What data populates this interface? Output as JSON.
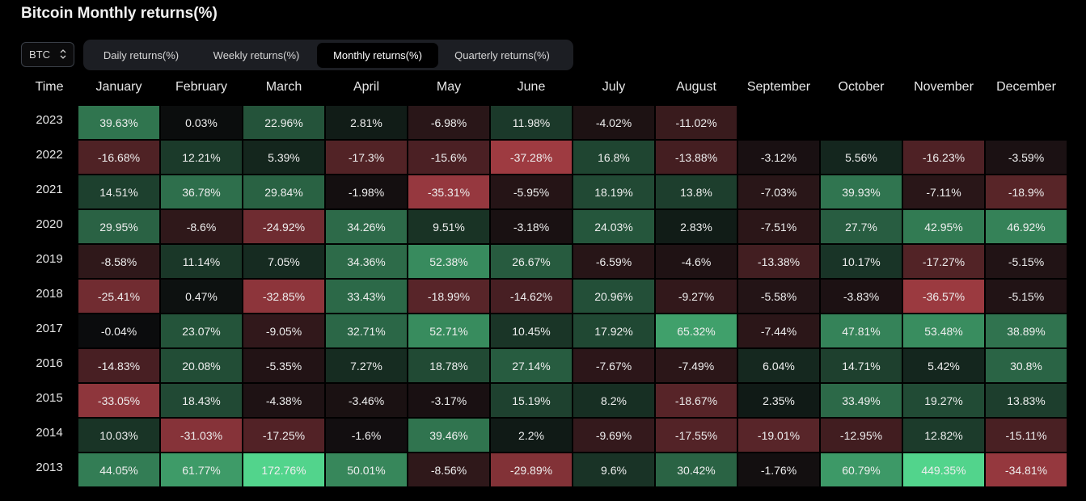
{
  "title": "Bitcoin Monthly returns(%)",
  "asset_selector": {
    "value": "BTC"
  },
  "tabs": [
    {
      "label": "Daily returns(%)",
      "active": false
    },
    {
      "label": "Weekly returns(%)",
      "active": false
    },
    {
      "label": "Monthly returns(%)",
      "active": true
    },
    {
      "label": "Quarterly returns(%)",
      "active": false
    }
  ],
  "colors": {
    "background": "#000000",
    "positive": "#52d48c",
    "negative": "#a83e45",
    "neutral": "#0b0c0d"
  },
  "chart_data": {
    "type": "heatmap",
    "title": "Bitcoin Monthly returns(%)",
    "row_header": "Time",
    "columns": [
      "January",
      "February",
      "March",
      "April",
      "May",
      "June",
      "July",
      "August",
      "September",
      "October",
      "November",
      "December"
    ],
    "rows": [
      {
        "year": "2023",
        "values": [
          39.63,
          0.03,
          22.96,
          2.81,
          -6.98,
          11.98,
          -4.02,
          -11.02,
          null,
          null,
          null,
          null
        ],
        "labels": [
          "39.63%",
          "0.03%",
          "22.96%",
          "2.81%",
          "-6.98%",
          "11.98%",
          "-4.02%",
          "-11.02%",
          null,
          null,
          null,
          null
        ]
      },
      {
        "year": "2022",
        "values": [
          -16.68,
          12.21,
          5.39,
          -17.3,
          -15.6,
          -37.28,
          16.8,
          -13.88,
          -3.12,
          5.56,
          -16.23,
          -3.59
        ],
        "labels": [
          "-16.68%",
          "12.21%",
          "5.39%",
          "-17.3%",
          "-15.6%",
          "-37.28%",
          "16.8%",
          "-13.88%",
          "-3.12%",
          "5.56%",
          "-16.23%",
          "-3.59%"
        ]
      },
      {
        "year": "2021",
        "values": [
          14.51,
          36.78,
          29.84,
          -1.98,
          -35.31,
          -5.95,
          18.19,
          13.8,
          -7.03,
          39.93,
          -7.11,
          -18.9
        ],
        "labels": [
          "14.51%",
          "36.78%",
          "29.84%",
          "-1.98%",
          "-35.31%",
          "-5.95%",
          "18.19%",
          "13.8%",
          "-7.03%",
          "39.93%",
          "-7.11%",
          "-18.9%"
        ]
      },
      {
        "year": "2020",
        "values": [
          29.95,
          -8.6,
          -24.92,
          34.26,
          9.51,
          -3.18,
          24.03,
          2.83,
          -7.51,
          27.7,
          42.95,
          46.92
        ],
        "labels": [
          "29.95%",
          "-8.6%",
          "-24.92%",
          "34.26%",
          "9.51%",
          "-3.18%",
          "24.03%",
          "2.83%",
          "-7.51%",
          "27.7%",
          "42.95%",
          "46.92%"
        ]
      },
      {
        "year": "2019",
        "values": [
          -8.58,
          11.14,
          7.05,
          34.36,
          52.38,
          26.67,
          -6.59,
          -4.6,
          -13.38,
          10.17,
          -17.27,
          -5.15
        ],
        "labels": [
          "-8.58%",
          "11.14%",
          "7.05%",
          "34.36%",
          "52.38%",
          "26.67%",
          "-6.59%",
          "-4.6%",
          "-13.38%",
          "10.17%",
          "-17.27%",
          "-5.15%"
        ]
      },
      {
        "year": "2018",
        "values": [
          -25.41,
          0.47,
          -32.85,
          33.43,
          -18.99,
          -14.62,
          20.96,
          -9.27,
          -5.58,
          -3.83,
          -36.57,
          -5.15
        ],
        "labels": [
          "-25.41%",
          "0.47%",
          "-32.85%",
          "33.43%",
          "-18.99%",
          "-14.62%",
          "20.96%",
          "-9.27%",
          "-5.58%",
          "-3.83%",
          "-36.57%",
          "-5.15%"
        ]
      },
      {
        "year": "2017",
        "values": [
          -0.04,
          23.07,
          -9.05,
          32.71,
          52.71,
          10.45,
          17.92,
          65.32,
          -7.44,
          47.81,
          53.48,
          38.89
        ],
        "labels": [
          "-0.04%",
          "23.07%",
          "-9.05%",
          "32.71%",
          "52.71%",
          "10.45%",
          "17.92%",
          "65.32%",
          "-7.44%",
          "47.81%",
          "53.48%",
          "38.89%"
        ]
      },
      {
        "year": "2016",
        "values": [
          -14.83,
          20.08,
          -5.35,
          7.27,
          18.78,
          27.14,
          -7.67,
          -7.49,
          6.04,
          14.71,
          5.42,
          30.8
        ],
        "labels": [
          "-14.83%",
          "20.08%",
          "-5.35%",
          "7.27%",
          "18.78%",
          "27.14%",
          "-7.67%",
          "-7.49%",
          "6.04%",
          "14.71%",
          "5.42%",
          "30.8%"
        ]
      },
      {
        "year": "2015",
        "values": [
          -33.05,
          18.43,
          -4.38,
          -3.46,
          -3.17,
          15.19,
          8.2,
          -18.67,
          2.35,
          33.49,
          19.27,
          13.83
        ],
        "labels": [
          "-33.05%",
          "18.43%",
          "-4.38%",
          "-3.46%",
          "-3.17%",
          "15.19%",
          "8.2%",
          "-18.67%",
          "2.35%",
          "33.49%",
          "19.27%",
          "13.83%"
        ]
      },
      {
        "year": "2014",
        "values": [
          10.03,
          -31.03,
          -17.25,
          -1.6,
          39.46,
          2.2,
          -9.69,
          -17.55,
          -19.01,
          -12.95,
          12.82,
          -15.11
        ],
        "labels": [
          "10.03%",
          "-31.03%",
          "-17.25%",
          "-1.6%",
          "39.46%",
          "2.2%",
          "-9.69%",
          "-17.55%",
          "-19.01%",
          "-12.95%",
          "12.82%",
          "-15.11%"
        ]
      },
      {
        "year": "2013",
        "values": [
          44.05,
          61.77,
          172.76,
          50.01,
          -8.56,
          -29.89,
          9.6,
          30.42,
          -1.76,
          60.79,
          449.35,
          -34.81
        ],
        "labels": [
          "44.05%",
          "61.77%",
          "172.76%",
          "50.01%",
          "-8.56%",
          "-29.89%",
          "9.6%",
          "30.42%",
          "-1.76%",
          "60.79%",
          "449.35%",
          "-34.81%"
        ]
      }
    ]
  }
}
